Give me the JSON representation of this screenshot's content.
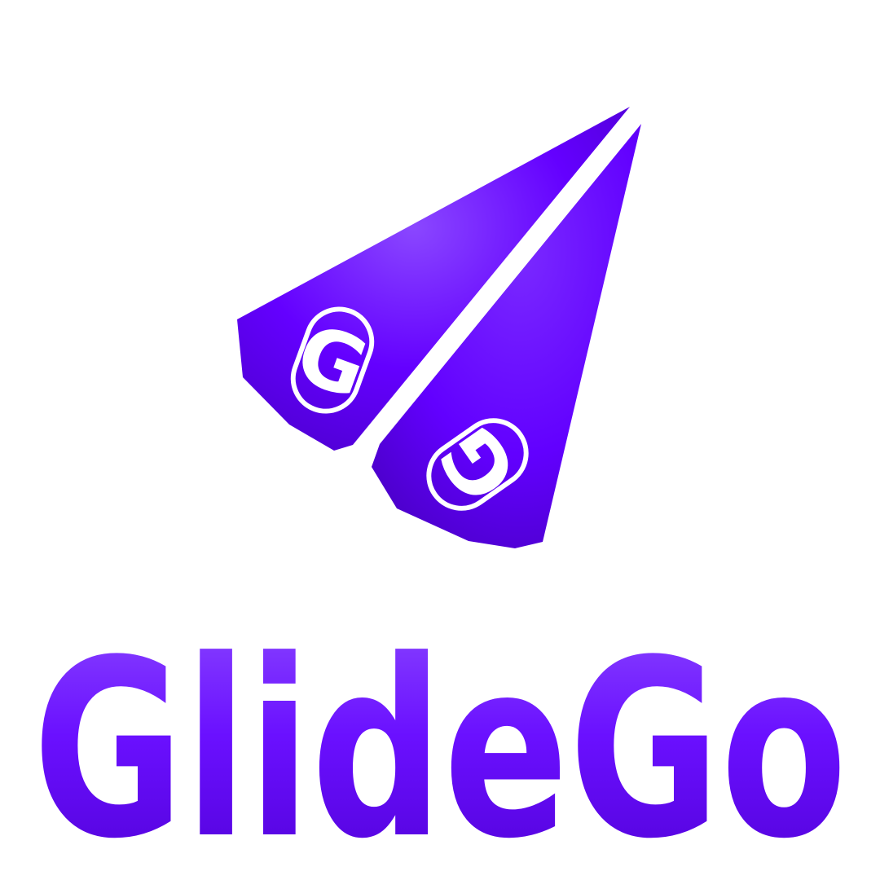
{
  "brand": {
    "name": "GlideGo",
    "emblem_letter_left": "G",
    "emblem_letter_right": "G"
  },
  "icons": {
    "logo": "paper-plane-icon"
  },
  "colors": {
    "background": "#ffffff",
    "primary": "#6000ff",
    "primary_light": "#8a47ff",
    "primary_dark": "#4a00c8",
    "outline": "#ffffff"
  }
}
